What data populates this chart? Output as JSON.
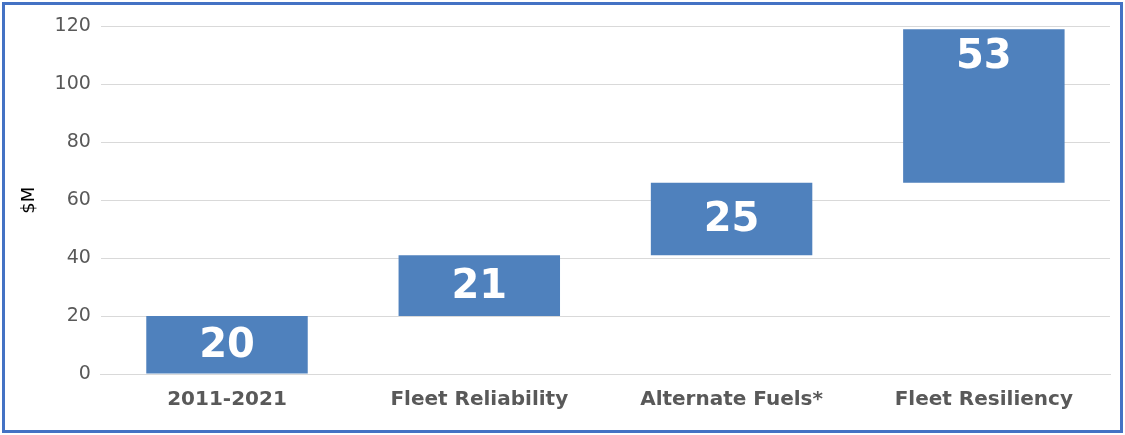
{
  "chart_data": {
    "type": "bar",
    "ylabel": "$M",
    "categories": [
      "2011-2021",
      "Fleet Reliability",
      "Alternate Fuels*",
      "Fleet Resiliency"
    ],
    "values": [
      20,
      21,
      25,
      53
    ],
    "base": [
      0,
      20,
      41,
      66
    ],
    "color": "#4f81bd",
    "ylim": [
      0,
      120
    ],
    "yticks": [
      0,
      20,
      40,
      60,
      80,
      100,
      120
    ],
    "grid": "y",
    "legend": false,
    "data_labels": true
  }
}
